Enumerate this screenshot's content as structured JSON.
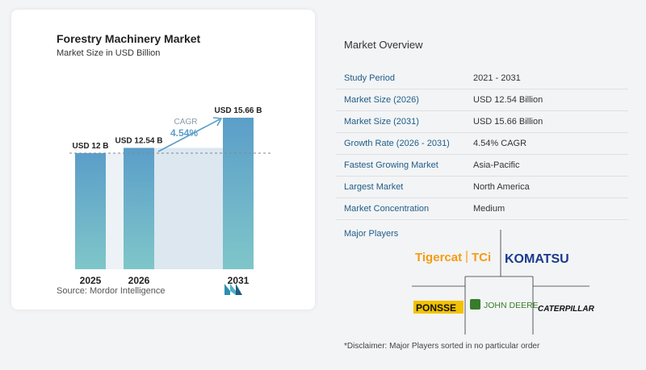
{
  "chart_card": {
    "title": "Forestry Machinery Market",
    "subtitle": "Market Size in USD Billion",
    "source": "Source:  Mordor Intelligence"
  },
  "chart_data": {
    "type": "bar",
    "title": "Forestry Machinery Market",
    "subtitle": "Market Size in USD Billion",
    "categories": [
      "2025",
      "2026",
      "2031"
    ],
    "values": [
      12,
      12.54,
      15.66
    ],
    "value_labels": [
      "USD 12 B",
      "USD 12.54 B",
      "USD 15.66 B"
    ],
    "ylim": [
      0,
      15.66
    ],
    "cagr_label": "CAGR",
    "cagr_value": "4.54%",
    "bar_color": "#5b9ec9",
    "bar_color_bottom": "#7fc6c9",
    "shade_color": "#dce7f0"
  },
  "overview": {
    "title": "Market Overview",
    "rows": [
      {
        "label": "Study Period",
        "value": "2021 - 2031"
      },
      {
        "label": "Market Size (2026)",
        "value": "USD 12.54 Billion"
      },
      {
        "label": "Market Size (2031)",
        "value": "USD 15.66 Billion"
      },
      {
        "label": "Growth Rate (2026 - 2031)",
        "value": "4.54% CAGR"
      },
      {
        "label": "Fastest Growing Market",
        "value": "Asia-Pacific"
      },
      {
        "label": "Largest Market",
        "value": "North America"
      },
      {
        "label": "Market Concentration",
        "value": "Medium"
      }
    ]
  },
  "players": {
    "title": "Major Players",
    "logos": [
      "Tigercat",
      "TCi",
      "KOMATSU",
      "PONSSE",
      "JOHN DEERE",
      "CATERPILLAR"
    ]
  },
  "disclaimer": "*Disclaimer: Major Players sorted in no particular order"
}
